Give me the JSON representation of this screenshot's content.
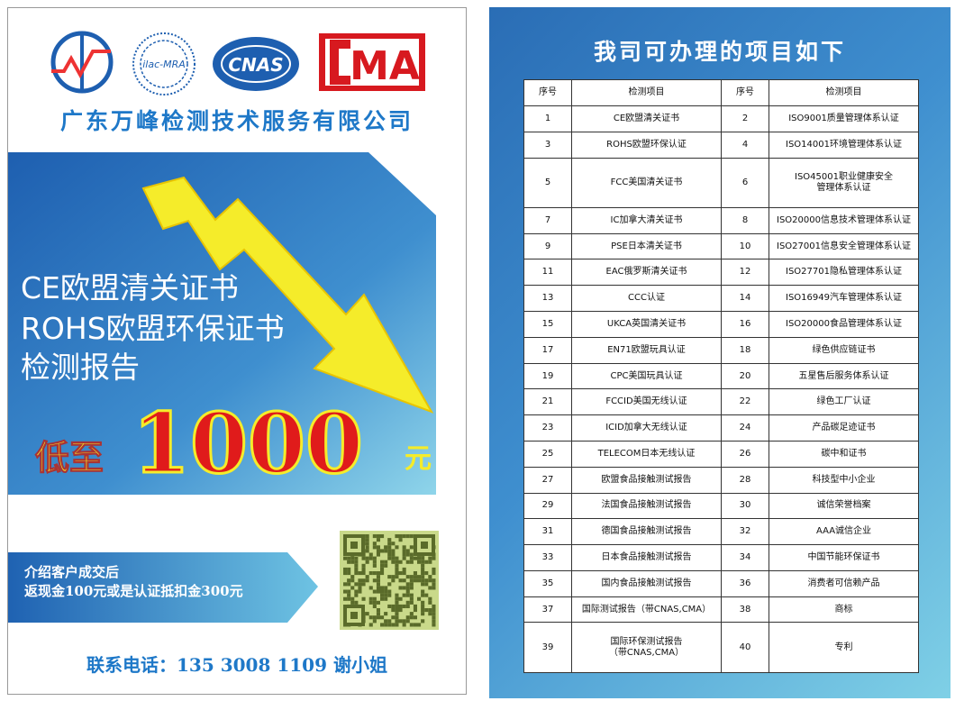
{
  "logos": {
    "ilac": "ilac-MRA",
    "cnas": "CNAS",
    "cma": "MA"
  },
  "company": "广东万峰检测技术服务有限公司",
  "headline": [
    "CE欧盟清关证书",
    "ROHS欧盟环保证书",
    "检测报告"
  ],
  "price": {
    "prefix": "低至",
    "amount": "1000",
    "unit": "元"
  },
  "referral": [
    "介绍客户成交后",
    "返现金100元或是认证抵扣金300元"
  ],
  "contact": "联系电话：135 3008 1109 谢小姐",
  "list_title": "我司可办理的项目如下",
  "table": {
    "header": [
      "序号",
      "检测项目",
      "序号",
      "检测项目"
    ],
    "rows": [
      [
        1,
        "CE欧盟清关证书",
        2,
        "ISO9001质量管理体系认证"
      ],
      [
        3,
        "ROHS欧盟环保认证",
        4,
        "ISO14001环境管理体系认证"
      ],
      [
        5,
        "FCC美国清关证书",
        6,
        "ISO45001职业健康安全\n管理体系认证"
      ],
      [
        7,
        "IC加拿大清关证书",
        8,
        "ISO20000信息技术管理体系认证"
      ],
      [
        9,
        "PSE日本清关证书",
        10,
        "ISO27001信息安全管理体系认证"
      ],
      [
        11,
        "EAC俄罗斯清关证书",
        12,
        "ISO27701隐私管理体系认证"
      ],
      [
        13,
        "CCC认证",
        14,
        "ISO16949汽车管理体系认证"
      ],
      [
        15,
        "UKCA英国清关证书",
        16,
        "ISO20000食品管理体系认证"
      ],
      [
        17,
        "EN71欧盟玩具认证",
        18,
        "绿色供应链证书"
      ],
      [
        19,
        "CPC美国玩具认证",
        20,
        "五星售后服务体系认证"
      ],
      [
        21,
        "FCCID美国无线认证",
        22,
        "绿色工厂认证"
      ],
      [
        23,
        "ICID加拿大无线认证",
        24,
        "产品碳足迹证书"
      ],
      [
        25,
        "TELECOM日本无线认证",
        26,
        "碳中和证书"
      ],
      [
        27,
        "欧盟食品接触测试报告",
        28,
        "科技型中小企业"
      ],
      [
        29,
        "法国食品接触测试报告",
        30,
        "诚信荣誉档案"
      ],
      [
        31,
        "德国食品接触测试报告",
        32,
        "AAA诚信企业"
      ],
      [
        33,
        "日本食品接触测试报告",
        34,
        "中国节能环保证书"
      ],
      [
        35,
        "国内食品接触测试报告",
        36,
        "消费者可信赖产品"
      ],
      [
        37,
        "国际测试报告（带CNAS,CMA）",
        38,
        "商标"
      ],
      [
        39,
        "国际环保测试报告\n（带CNAS,CMA）",
        40,
        "专利"
      ]
    ]
  }
}
